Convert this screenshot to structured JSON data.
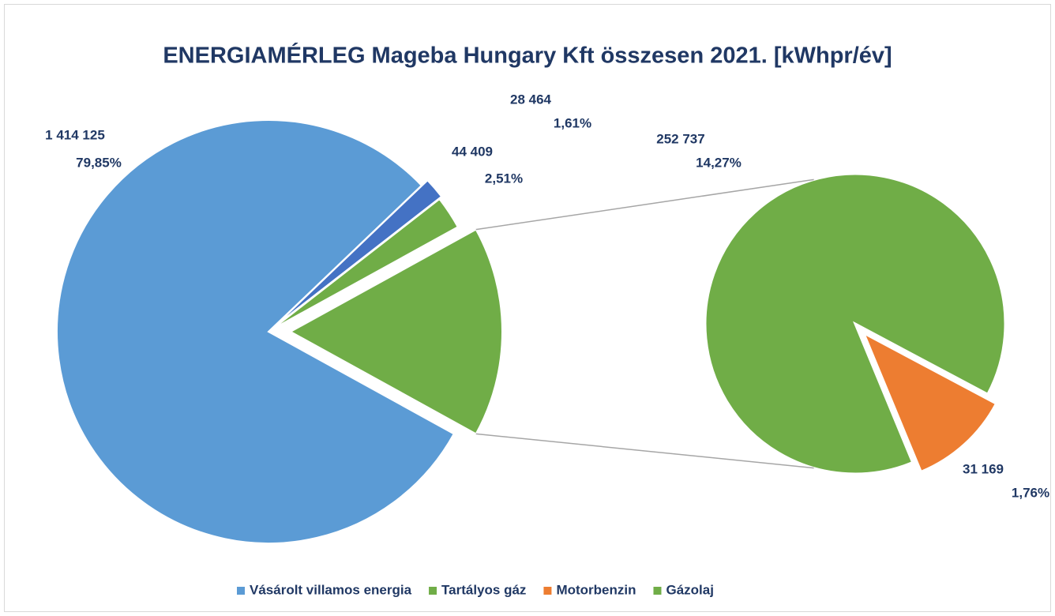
{
  "chart_data": {
    "type": "pie-of-pie",
    "title": "ENERGIAMÉRLEG Mageba Hungary Kft összesen 2021. [kWhpr/év]",
    "categories": [
      "Vásárolt villamos energia",
      null,
      "Tartályos gáz",
      "Motorbenzin",
      "Gázolaj"
    ],
    "values": [
      1414125,
      28464,
      44409,
      31169,
      252737
    ],
    "value_labels": [
      "1 414 125",
      "28 464",
      "44 409",
      "31 169",
      "252 737"
    ],
    "percents": [
      79.85,
      1.61,
      2.51,
      1.76,
      14.27
    ],
    "percent_labels": [
      "79,85%",
      "1,61%",
      "2,51%",
      "1,76%",
      "14,27%"
    ],
    "colors": [
      "#5b9bd5",
      "#4472c4",
      "#70ad47",
      "#ed7d31",
      "#70ad47"
    ],
    "second_plot_count": 2,
    "legend": "bottom"
  }
}
